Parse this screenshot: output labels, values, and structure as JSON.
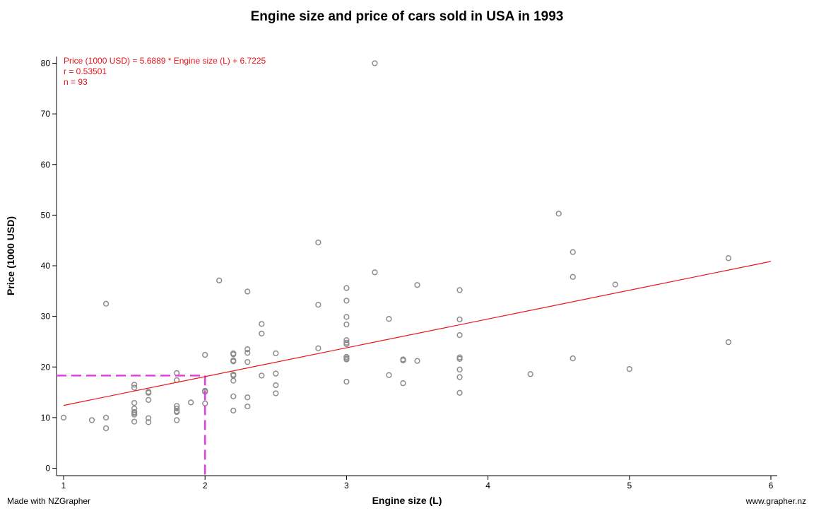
{
  "chart_data": {
    "type": "scatter",
    "title": "Engine size and price of cars sold in USA in 1993",
    "xlabel": "Engine size (L)",
    "ylabel": "Price (1000 USD)",
    "xlim": [
      1,
      6
    ],
    "ylim": [
      0,
      80
    ],
    "x_ticks": [
      1,
      2,
      3,
      4,
      5,
      6
    ],
    "y_ticks": [
      0,
      10,
      20,
      30,
      40,
      50,
      60,
      70,
      80
    ],
    "grid": false,
    "annotations": [
      "Price (1000 USD) = 5.6889 * Engine size (L) + 6.7225",
      "r = 0.53501",
      "n = 93"
    ],
    "regression": {
      "slope": 5.6889,
      "intercept": 6.7225,
      "color": "#e8141b"
    },
    "highlight": {
      "x": 2,
      "y": 18.3,
      "color": "#e040e0"
    },
    "point_color": "#8c8c8c",
    "points": [
      [
        1.0,
        10.0
      ],
      [
        1.2,
        9.5
      ],
      [
        1.3,
        10.0
      ],
      [
        1.3,
        7.9
      ],
      [
        1.3,
        32.5
      ],
      [
        1.5,
        16.5
      ],
      [
        1.5,
        15.9
      ],
      [
        1.5,
        12.9
      ],
      [
        1.5,
        11.8
      ],
      [
        1.5,
        11.1
      ],
      [
        1.5,
        10.6
      ],
      [
        1.5,
        9.2
      ],
      [
        1.6,
        15.1
      ],
      [
        1.6,
        14.9
      ],
      [
        1.6,
        13.5
      ],
      [
        1.6,
        9.9
      ],
      [
        1.6,
        9.1
      ],
      [
        1.8,
        18.8
      ],
      [
        1.8,
        17.4
      ],
      [
        1.8,
        12.3
      ],
      [
        1.8,
        11.8
      ],
      [
        1.8,
        11.3
      ],
      [
        1.8,
        11.1
      ],
      [
        1.8,
        9.5
      ],
      [
        1.9,
        13.0
      ],
      [
        2.0,
        22.4
      ],
      [
        2.0,
        15.3
      ],
      [
        2.0,
        15.1
      ],
      [
        2.0,
        12.8
      ],
      [
        2.1,
        37.1
      ],
      [
        2.2,
        22.7
      ],
      [
        2.2,
        22.5
      ],
      [
        2.2,
        21.3
      ],
      [
        2.2,
        21.1
      ],
      [
        2.2,
        18.5
      ],
      [
        2.2,
        18.3
      ],
      [
        2.2,
        17.3
      ],
      [
        2.2,
        14.2
      ],
      [
        2.2,
        11.4
      ],
      [
        2.3,
        34.9
      ],
      [
        2.3,
        23.5
      ],
      [
        2.3,
        22.8
      ],
      [
        2.3,
        21.0
      ],
      [
        2.3,
        14.0
      ],
      [
        2.3,
        12.2
      ],
      [
        2.4,
        28.5
      ],
      [
        2.4,
        26.6
      ],
      [
        2.4,
        18.3
      ],
      [
        2.5,
        22.7
      ],
      [
        2.5,
        18.7
      ],
      [
        2.5,
        16.4
      ],
      [
        2.5,
        14.8
      ],
      [
        2.8,
        44.6
      ],
      [
        2.8,
        32.3
      ],
      [
        2.8,
        23.7
      ],
      [
        3.0,
        35.6
      ],
      [
        3.0,
        33.1
      ],
      [
        3.0,
        29.9
      ],
      [
        3.0,
        28.4
      ],
      [
        3.0,
        25.3
      ],
      [
        3.0,
        24.8
      ],
      [
        3.0,
        24.5
      ],
      [
        3.0,
        22.0
      ],
      [
        3.0,
        21.7
      ],
      [
        3.0,
        21.5
      ],
      [
        3.0,
        17.1
      ],
      [
        3.2,
        80.0
      ],
      [
        3.2,
        38.7
      ],
      [
        3.3,
        29.5
      ],
      [
        3.3,
        18.4
      ],
      [
        3.4,
        21.5
      ],
      [
        3.4,
        21.3
      ],
      [
        3.4,
        16.8
      ],
      [
        3.5,
        36.2
      ],
      [
        3.5,
        21.2
      ],
      [
        3.8,
        35.2
      ],
      [
        3.8,
        29.4
      ],
      [
        3.8,
        26.3
      ],
      [
        3.8,
        21.9
      ],
      [
        3.8,
        21.6
      ],
      [
        3.8,
        19.5
      ],
      [
        3.8,
        18.0
      ],
      [
        3.8,
        14.9
      ],
      [
        4.3,
        18.6
      ],
      [
        4.5,
        50.3
      ],
      [
        4.6,
        42.7
      ],
      [
        4.6,
        37.8
      ],
      [
        4.6,
        21.7
      ],
      [
        4.9,
        36.3
      ],
      [
        5.0,
        19.6
      ],
      [
        5.7,
        41.5
      ],
      [
        5.7,
        24.9
      ],
      [
        1.5,
        10.9
      ]
    ]
  },
  "footer": {
    "left": "Made with NZGrapher",
    "right": "www.grapher.nz"
  }
}
